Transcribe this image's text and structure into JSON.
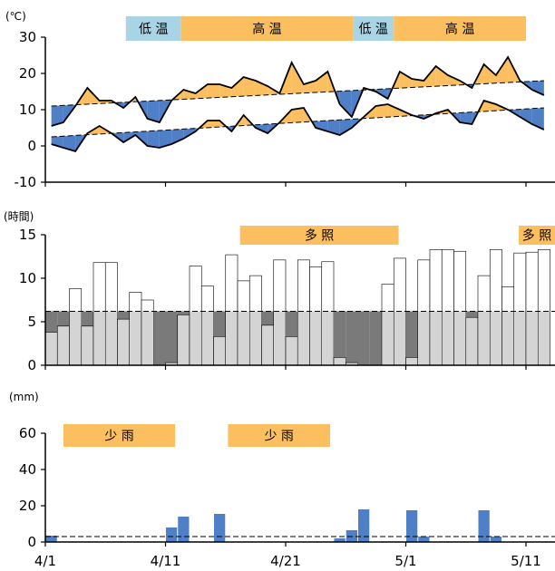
{
  "chart_data": [
    {
      "type": "line",
      "unit": "(℃)",
      "ylim": [
        -10,
        30
      ],
      "yticks": [
        "30",
        "20",
        "10",
        "0",
        "-10"
      ],
      "x": [
        "4/1",
        "4/2",
        "4/3",
        "4/4",
        "4/5",
        "4/6",
        "4/7",
        "4/8",
        "4/9",
        "4/10",
        "4/11",
        "4/12",
        "4/13",
        "4/14",
        "4/15",
        "4/16",
        "4/17",
        "4/18",
        "4/19",
        "4/20",
        "4/21",
        "4/22",
        "4/23",
        "4/24",
        "4/25",
        "4/26",
        "4/27",
        "4/28",
        "4/29",
        "4/30",
        "5/1",
        "5/2",
        "5/3",
        "5/4",
        "5/5",
        "5/6",
        "5/7",
        "5/8",
        "5/9",
        "5/10",
        "5/11",
        "5/12"
      ],
      "series": [
        {
          "role": "max",
          "values": [
            5.5,
            6.5,
            11,
            16,
            12.5,
            12.5,
            10.5,
            13.5,
            7.5,
            6.5,
            12.5,
            15.5,
            14.5,
            17,
            17,
            16,
            19,
            18,
            16.5,
            14.5,
            23,
            17,
            18,
            20.5,
            11.5,
            8,
            16,
            15,
            13,
            20.5,
            18.5,
            18,
            22,
            19.5,
            18,
            16,
            22.5,
            19.5,
            24.5,
            18,
            15.5,
            14
          ]
        },
        {
          "role": "min",
          "values": [
            0.5,
            -0.5,
            -1.5,
            3.5,
            5.5,
            3.5,
            1,
            3,
            0,
            -0.5,
            0.5,
            2,
            4,
            7,
            7,
            4,
            8.5,
            5,
            3.5,
            6.5,
            10,
            10.5,
            5,
            4,
            3,
            5,
            8,
            11,
            11.5,
            10,
            8.5,
            7.5,
            9,
            10,
            6.5,
            6,
            12.5,
            11.5,
            10,
            8,
            6,
            4.5
          ]
        },
        {
          "role": "normal-max",
          "start": 11,
          "end": 18
        },
        {
          "role": "normal-min",
          "start": 2.5,
          "end": 10.5
        }
      ],
      "bands": [
        {
          "label": "低 温",
          "start": 6.7,
          "end": 11.3,
          "color": "#a8d4e6"
        },
        {
          "label": "高       温",
          "start": 11.3,
          "end": 25.6,
          "color": "#fcbf60"
        },
        {
          "label": "低 温",
          "start": 25.6,
          "end": 29.0,
          "color": "#a8d4e6"
        },
        {
          "label": "高           温",
          "start": 29.0,
          "end": 40.0,
          "color": "#fcbf60"
        }
      ],
      "colors": {
        "above_normal": "#fcbf60",
        "below_normal": "#4f7fc7"
      }
    },
    {
      "type": "bar",
      "unit": "(時間)",
      "ylim": [
        0,
        15
      ],
      "yticks": [
        "15",
        "10",
        "5",
        "0"
      ],
      "values": [
        3.8,
        4.5,
        8.8,
        4.5,
        11.8,
        11.8,
        5.3,
        8.4,
        7.5,
        0,
        0.3,
        5.8,
        11.4,
        9.1,
        3.3,
        12.7,
        9.7,
        10.3,
        4.6,
        12.1,
        3.3,
        12.1,
        11.3,
        11.9,
        0.9,
        0.3,
        0,
        0,
        9.3,
        12.3,
        0.9,
        12.1,
        13.3,
        13.3,
        13.1,
        5.5,
        10.3,
        13.3,
        9,
        12.9,
        13,
        13.3
      ],
      "normal": 6.2,
      "bands": [
        {
          "label": "多       照",
          "start": 16.2,
          "end": 29.4,
          "color": "#fcbf60"
        },
        {
          "label": "多           照",
          "start": 39.4,
          "end": 51.8,
          "color": "#fcbf60"
        }
      ],
      "colors": {
        "bar_fill": "#d4d4d4",
        "below_normal_fill": "#7a7a7a"
      }
    },
    {
      "type": "bar",
      "unit": "(mm)",
      "ylim": [
        0,
        70
      ],
      "yticks": [
        "60",
        "40",
        "20",
        "0"
      ],
      "values": [
        3.5,
        0,
        0,
        0,
        0,
        0,
        0,
        0,
        0,
        0,
        8,
        14,
        0,
        0,
        15.5,
        0,
        0,
        0,
        0,
        0,
        0,
        0,
        0,
        0,
        2,
        6.5,
        18,
        0,
        0,
        0,
        17.5,
        3,
        0,
        0,
        0,
        0,
        17.5,
        3,
        0,
        0,
        0,
        0
      ],
      "normal": 3,
      "bands": [
        {
          "label": "少    雨",
          "start": 1.5,
          "end": 10.8,
          "color": "#fcbf60"
        },
        {
          "label": "少    雨",
          "start": 15.2,
          "end": 23.7,
          "color": "#fcbf60"
        }
      ],
      "colors": {
        "bar_fill": "#4f7fc7"
      }
    }
  ],
  "x_tick_labels": [
    {
      "label": "4/1",
      "index": 0
    },
    {
      "label": "4/11",
      "index": 10
    },
    {
      "label": "4/21",
      "index": 20
    },
    {
      "label": "5/1",
      "index": 30
    },
    {
      "label": "5/11",
      "index": 40
    }
  ]
}
